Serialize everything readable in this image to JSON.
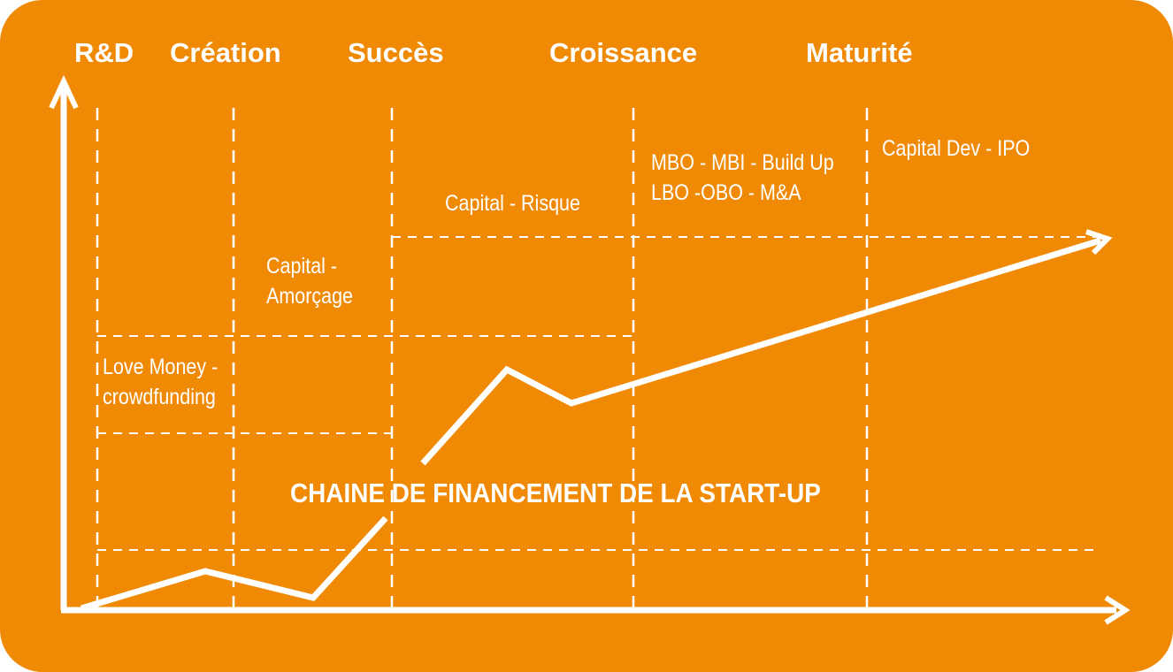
{
  "stages": [
    "R&D",
    "Création",
    "Succès",
    "Croissance",
    "Maturité"
  ],
  "financing": {
    "love_money": [
      "Love Money -",
      "crowdfunding"
    ],
    "amorcage": [
      "Capital -",
      "Amorçage"
    ],
    "risque": [
      "Capital - Risque"
    ],
    "buyout": [
      "MBO - MBI - Build Up",
      "LBO -OBO - M&A"
    ],
    "dev_ipo": [
      "Capital Dev - IPO"
    ]
  },
  "title": "CHAINE DE FINANCEMENT DE LA START-UP",
  "colors": {
    "background": "#F08A05",
    "foreground": "#FFFFFF"
  }
}
